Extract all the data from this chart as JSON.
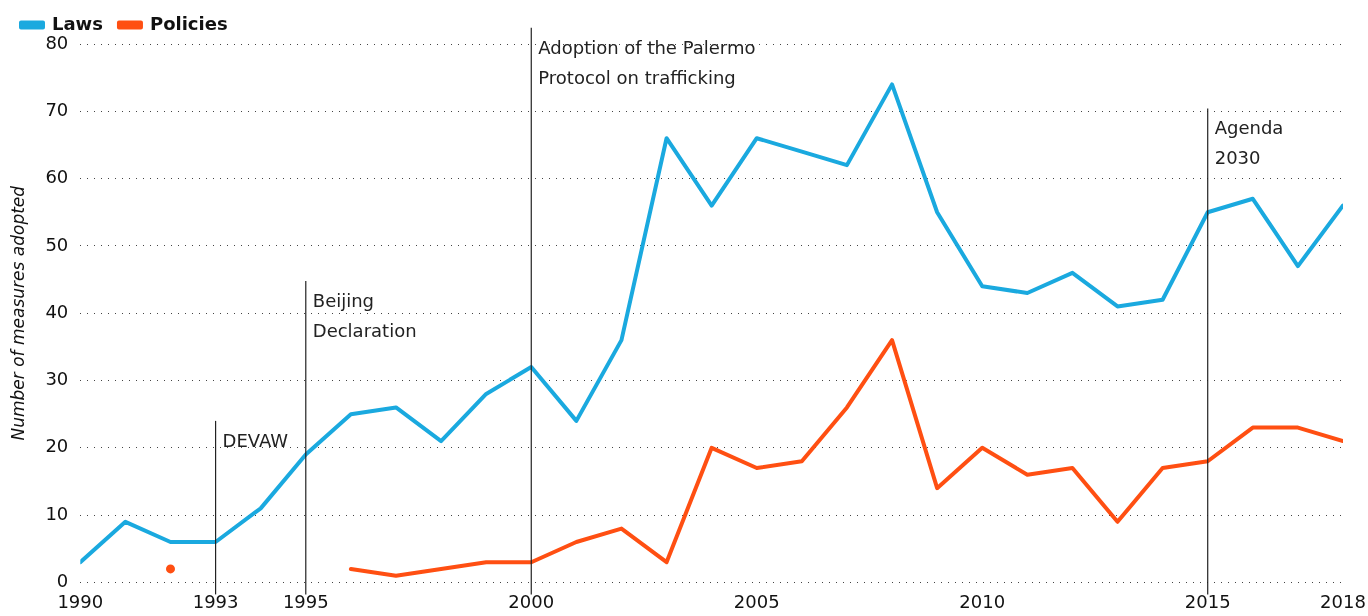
{
  "chart_data": {
    "type": "line",
    "ylabel": "Number of measures adopted",
    "x": [
      1990,
      1991,
      1992,
      1993,
      1994,
      1995,
      1996,
      1997,
      1998,
      1999,
      2000,
      2001,
      2002,
      2003,
      2004,
      2005,
      2006,
      2007,
      2008,
      2009,
      2010,
      2011,
      2012,
      2013,
      2014,
      2015,
      2016,
      2017,
      2018
    ],
    "series": [
      {
        "name": "Laws",
        "color": "#1aa9df",
        "values": [
          3,
          9,
          6,
          6,
          11,
          19,
          25,
          26,
          21,
          28,
          32,
          24,
          36,
          66,
          56,
          66,
          64,
          62,
          74,
          55,
          44,
          43,
          46,
          41,
          42,
          55,
          57,
          47,
          56
        ]
      },
      {
        "name": "Policies",
        "color": "#ff4f12",
        "values": [
          null,
          null,
          2,
          null,
          null,
          null,
          2,
          1,
          2,
          3,
          3,
          6,
          8,
          3,
          20,
          17,
          18,
          26,
          36,
          14,
          20,
          16,
          17,
          9,
          17,
          18,
          23,
          23,
          21
        ]
      }
    ],
    "xlim": [
      1990,
      2018
    ],
    "xticks": [
      1990,
      1993,
      1995,
      2000,
      2005,
      2010,
      2015,
      2018
    ],
    "ylim": [
      0,
      80
    ],
    "yticks": [
      0,
      10,
      20,
      30,
      40,
      50,
      60,
      70,
      80
    ],
    "ref_lines": [
      {
        "axis": "x",
        "value": 1993,
        "label": "DEVAW",
        "color": "#222222"
      },
      {
        "axis": "x",
        "value": 1995,
        "label": "Beijing Declaration",
        "color": "#222222"
      },
      {
        "axis": "x",
        "value": 2000,
        "label": "Adoption of the Palermo Protocol on trafficking",
        "color": "#222222"
      },
      {
        "axis": "x",
        "value": 2015,
        "label": "Agenda 2030",
        "color": "#222222"
      }
    ],
    "grid": "y",
    "legend": "top left",
    "marker": "none",
    "line_style": "solid"
  }
}
